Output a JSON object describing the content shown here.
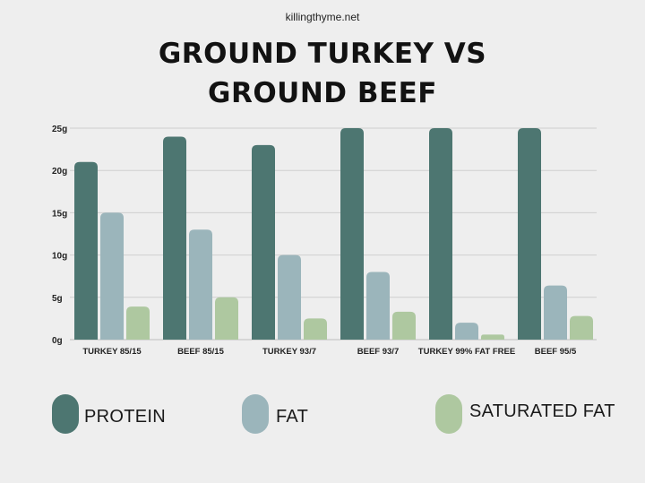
{
  "source": "killingthyme.net",
  "title_lines": [
    "GROUND TURKEY VS",
    "GROUND BEEF"
  ],
  "colors": {
    "protein": "#4d7671",
    "fat": "#9bb5bb",
    "saturated_fat": "#aec8a0",
    "grid": "#cfcfcf",
    "background": "#eeeeee"
  },
  "chart_data": {
    "type": "bar",
    "categories": [
      "TURKEY 85/15",
      "BEEF 85/15",
      "TURKEY 93/7",
      "BEEF 93/7",
      "TURKEY 99% FAT FREE",
      "BEEF 95/5"
    ],
    "series": [
      {
        "name": "PROTEIN",
        "values": [
          21,
          24,
          23,
          25,
          25,
          25
        ]
      },
      {
        "name": "FAT",
        "values": [
          15,
          13,
          10,
          8,
          2,
          6.4
        ]
      },
      {
        "name": "SATURATED FAT",
        "values": [
          3.9,
          5,
          2.5,
          3.3,
          0.6,
          2.8
        ]
      }
    ],
    "y_ticks": [
      0,
      5,
      10,
      15,
      20,
      25
    ],
    "y_tick_labels": [
      "0g",
      "5g",
      "10g",
      "15g",
      "20g",
      "25g"
    ],
    "ylim": [
      0,
      25
    ],
    "grid": true,
    "legend_position": "bottom"
  }
}
